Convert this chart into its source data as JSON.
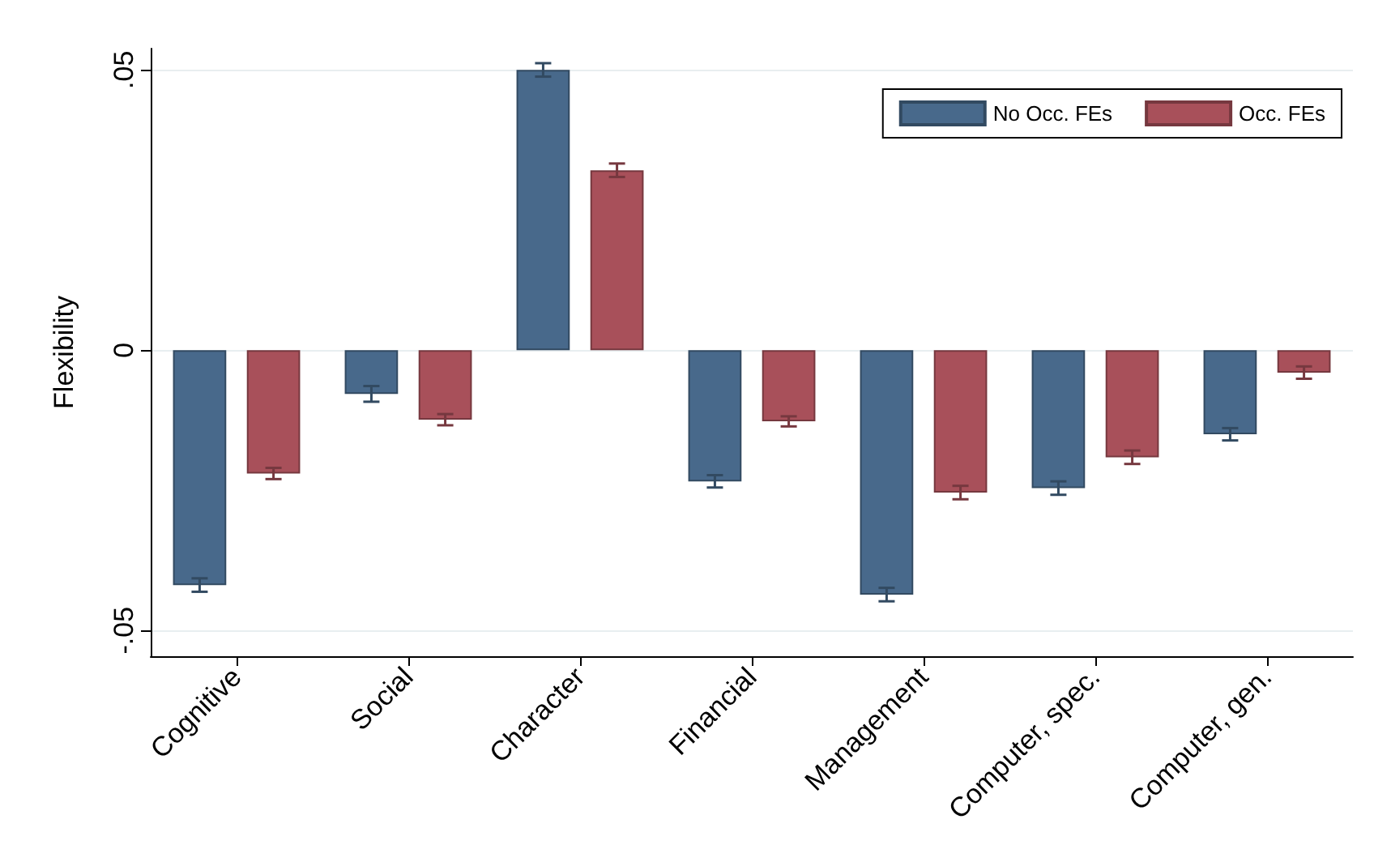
{
  "chart_data": {
    "type": "bar",
    "ylabel": "Flexibility",
    "categories": [
      "Cognitive",
      "Social",
      "Character",
      "Financial",
      "Management",
      "Computer, spec.",
      "Computer, gen."
    ],
    "series": [
      {
        "name": "No Occ. FEs",
        "color": "#48698b",
        "values": [
          -0.0419,
          -0.0078,
          0.05,
          -0.0234,
          -0.0436,
          -0.0246,
          -0.015
        ],
        "errors": [
          0.0012,
          0.0014,
          0.0012,
          0.0011,
          0.0012,
          0.0012,
          0.0011
        ]
      },
      {
        "name": "Occ. FEs",
        "color": "#a8505a",
        "values": [
          -0.022,
          -0.0124,
          0.0321,
          -0.0127,
          -0.0254,
          -0.0191,
          -0.004
        ],
        "errors": [
          0.001,
          0.001,
          0.0012,
          0.0009,
          0.0012,
          0.0012,
          0.0011
        ]
      }
    ],
    "ylim": [
      -0.0546,
      0.0538
    ],
    "yticks": [
      {
        "value": -0.05,
        "label": "-.05"
      },
      {
        "value": 0,
        "label": "0"
      },
      {
        "value": 0.05,
        "label": ".05"
      }
    ],
    "grid": "y",
    "legend": "top right"
  }
}
